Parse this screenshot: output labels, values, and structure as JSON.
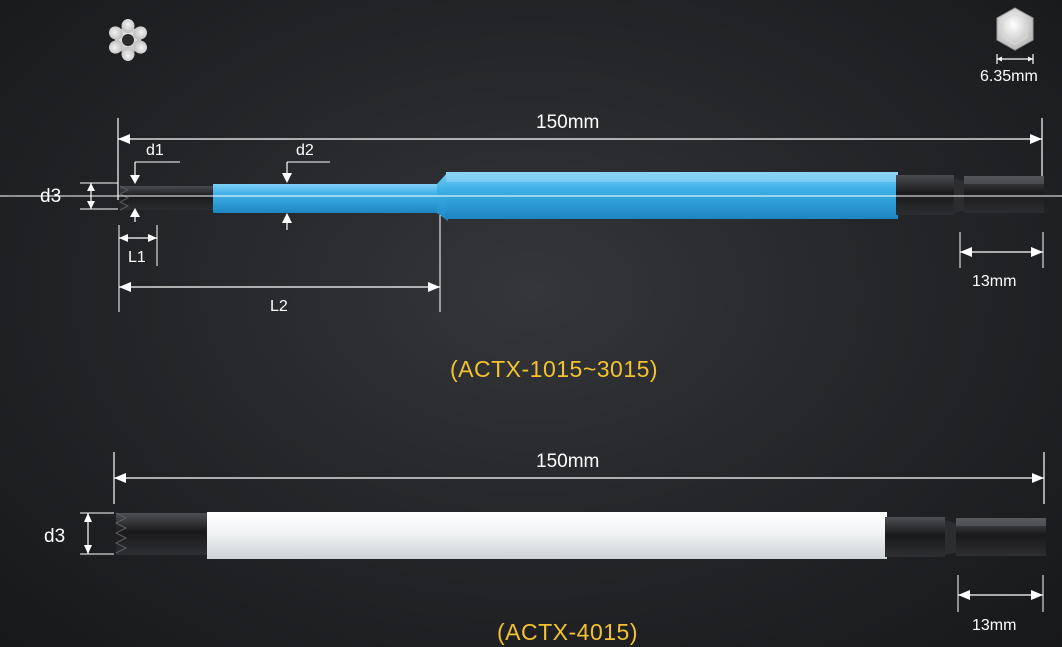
{
  "icons": {
    "torx_icon": "torx-star-icon",
    "hex_icon": "hex-shank-icon"
  },
  "colors": {
    "background": "#222326",
    "label": "#ffffff",
    "model_text": "#f2c230",
    "blue_sleeve": "#3fb0e8",
    "white_sleeve": "#f4f6f7",
    "steel": "#1c1c1e"
  },
  "hex_size": "6.35mm",
  "bit1": {
    "model": "(ACTX-1015~3015)",
    "length": "150mm",
    "shank_length": "13mm",
    "labels": {
      "d1": "d1",
      "d2": "d2",
      "d3": "d3",
      "L1": "L1",
      "L2": "L2"
    }
  },
  "bit2": {
    "model": "(ACTX-4015)",
    "length": "150mm",
    "shank_length": "13mm",
    "labels": {
      "d3": "d3"
    }
  }
}
